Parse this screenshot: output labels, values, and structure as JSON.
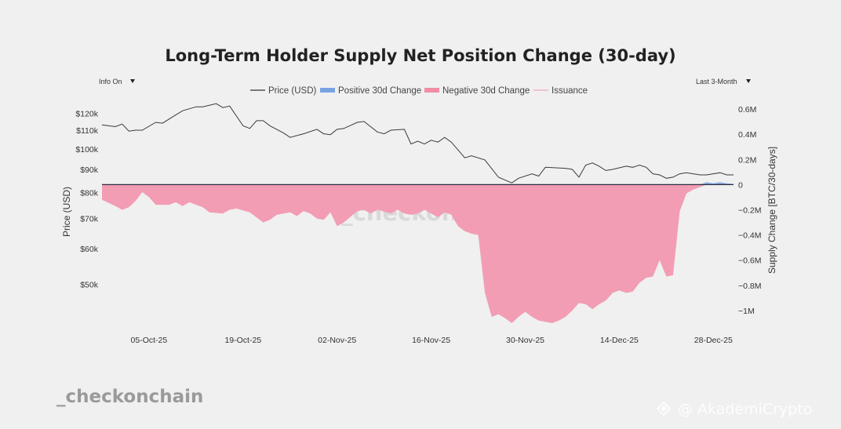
{
  "controls": {
    "info_label": "Info On",
    "range_label": "Last 3-Month"
  },
  "watermarks": {
    "center": "_checkonchain",
    "bottom_left": "_checkonchain",
    "bottom_right": "@ AkademiCrypto"
  },
  "chart_data": {
    "type": "line",
    "title": "Long-Term Holder Supply Net Position Change (30-day)",
    "legend": {
      "placement": "top-center",
      "entries": [
        {
          "label": "Price (USD)",
          "color": "#333333",
          "kind": "line"
        },
        {
          "label": "Positive 30d Change",
          "color": "#7aa2e3",
          "kind": "area"
        },
        {
          "label": "Negative 30d Change",
          "color": "#f28da8",
          "kind": "area"
        },
        {
          "label": "Issuance",
          "color": "#f2a6b8",
          "kind": "line"
        }
      ]
    },
    "x_axis": {
      "range": [
        "2025-09-28",
        "2025-12-31"
      ],
      "ticks": [
        {
          "date": "2025-10-05",
          "label": "05-Oct-25"
        },
        {
          "date": "2025-10-19",
          "label": "19-Oct-25"
        },
        {
          "date": "2025-11-02",
          "label": "02-Nov-25"
        },
        {
          "date": "2025-11-16",
          "label": "16-Nov-25"
        },
        {
          "date": "2025-11-30",
          "label": "30-Nov-25"
        },
        {
          "date": "2025-12-14",
          "label": "14-Dec-25"
        },
        {
          "date": "2025-12-28",
          "label": "28-Dec-25"
        }
      ]
    },
    "y_left": {
      "label": "Price (USD)",
      "scale": "log",
      "range": [
        43000,
        135000
      ],
      "ticks": [
        {
          "value": 50000,
          "label": "$50k"
        },
        {
          "value": 60000,
          "label": "$60k"
        },
        {
          "value": 70000,
          "label": "$70k"
        },
        {
          "value": 80000,
          "label": "$80k"
        },
        {
          "value": 90000,
          "label": "$90k"
        },
        {
          "value": 100000,
          "label": "$100k"
        },
        {
          "value": 110000,
          "label": "$110k"
        },
        {
          "value": 120000,
          "label": "$120k"
        }
      ]
    },
    "y_right": {
      "label": "Supply Change [BTC/30-days]",
      "scale": "linear",
      "range": [
        -1100000,
        700000
      ],
      "ticks": [
        {
          "value": 600000,
          "label": "0.6M"
        },
        {
          "value": 400000,
          "label": "0.4M"
        },
        {
          "value": 200000,
          "label": "0.2M"
        },
        {
          "value": 0,
          "label": "0"
        },
        {
          "value": -200000,
          "label": "−0.2M"
        },
        {
          "value": -400000,
          "label": "−0.4M"
        },
        {
          "value": -600000,
          "label": "−0.6M"
        },
        {
          "value": -800000,
          "label": "−0.8M"
        },
        {
          "value": -1000000,
          "label": "−1M"
        }
      ]
    },
    "grid": false,
    "price_series": [
      {
        "x": "2025-09-28",
        "y": 113000
      },
      {
        "x": "2025-09-30",
        "y": 112000
      },
      {
        "x": "2025-10-01",
        "y": 113500
      },
      {
        "x": "2025-10-02",
        "y": 109500
      },
      {
        "x": "2025-10-03",
        "y": 110000
      },
      {
        "x": "2025-10-04",
        "y": 110000
      },
      {
        "x": "2025-10-06",
        "y": 114500
      },
      {
        "x": "2025-10-07",
        "y": 114000
      },
      {
        "x": "2025-10-09",
        "y": 119000
      },
      {
        "x": "2025-10-10",
        "y": 121500
      },
      {
        "x": "2025-10-12",
        "y": 124000
      },
      {
        "x": "2025-10-13",
        "y": 124000
      },
      {
        "x": "2025-10-15",
        "y": 126000
      },
      {
        "x": "2025-10-16",
        "y": 123500
      },
      {
        "x": "2025-10-17",
        "y": 124500
      },
      {
        "x": "2025-10-19",
        "y": 112500
      },
      {
        "x": "2025-10-20",
        "y": 111000
      },
      {
        "x": "2025-10-21",
        "y": 115500
      },
      {
        "x": "2025-10-22",
        "y": 115500
      },
      {
        "x": "2025-10-23",
        "y": 112500
      },
      {
        "x": "2025-10-25",
        "y": 108500
      },
      {
        "x": "2025-10-26",
        "y": 106000
      },
      {
        "x": "2025-10-28",
        "y": 108000
      },
      {
        "x": "2025-10-30",
        "y": 110500
      },
      {
        "x": "2025-10-31",
        "y": 108000
      },
      {
        "x": "2025-11-01",
        "y": 107500
      },
      {
        "x": "2025-11-02",
        "y": 110500
      },
      {
        "x": "2025-11-03",
        "y": 111000
      },
      {
        "x": "2025-11-05",
        "y": 114500
      },
      {
        "x": "2025-11-06",
        "y": 115000
      },
      {
        "x": "2025-11-08",
        "y": 109000
      },
      {
        "x": "2025-11-09",
        "y": 108000
      },
      {
        "x": "2025-11-10",
        "y": 110000
      },
      {
        "x": "2025-11-12",
        "y": 110500
      },
      {
        "x": "2025-11-13",
        "y": 102500
      },
      {
        "x": "2025-11-14",
        "y": 104000
      },
      {
        "x": "2025-11-15",
        "y": 102500
      },
      {
        "x": "2025-11-16",
        "y": 104500
      },
      {
        "x": "2025-11-17",
        "y": 103500
      },
      {
        "x": "2025-11-18",
        "y": 106000
      },
      {
        "x": "2025-11-19",
        "y": 103500
      },
      {
        "x": "2025-11-21",
        "y": 95500
      },
      {
        "x": "2025-11-22",
        "y": 96500
      },
      {
        "x": "2025-11-24",
        "y": 94500
      },
      {
        "x": "2025-11-26",
        "y": 86500
      },
      {
        "x": "2025-11-28",
        "y": 84000
      },
      {
        "x": "2025-11-29",
        "y": 86000
      },
      {
        "x": "2025-12-01",
        "y": 88000
      },
      {
        "x": "2025-12-02",
        "y": 87000
      },
      {
        "x": "2025-12-03",
        "y": 91000
      },
      {
        "x": "2025-12-06",
        "y": 90500
      },
      {
        "x": "2025-12-07",
        "y": 90000
      },
      {
        "x": "2025-12-08",
        "y": 86500
      },
      {
        "x": "2025-12-09",
        "y": 92000
      },
      {
        "x": "2025-12-10",
        "y": 93000
      },
      {
        "x": "2025-12-11",
        "y": 91500
      },
      {
        "x": "2025-12-12",
        "y": 89500
      },
      {
        "x": "2025-12-13",
        "y": 90000
      },
      {
        "x": "2025-12-15",
        "y": 91500
      },
      {
        "x": "2025-12-16",
        "y": 91000
      },
      {
        "x": "2025-12-17",
        "y": 92000
      },
      {
        "x": "2025-12-18",
        "y": 91000
      },
      {
        "x": "2025-12-19",
        "y": 88000
      },
      {
        "x": "2025-12-20",
        "y": 87500
      },
      {
        "x": "2025-12-21",
        "y": 86000
      },
      {
        "x": "2025-12-22",
        "y": 86500
      },
      {
        "x": "2025-12-23",
        "y": 88000
      },
      {
        "x": "2025-12-24",
        "y": 88500
      },
      {
        "x": "2025-12-25",
        "y": 88000
      },
      {
        "x": "2025-12-26",
        "y": 87500
      },
      {
        "x": "2025-12-27",
        "y": 87500
      },
      {
        "x": "2025-12-29",
        "y": 88500
      },
      {
        "x": "2025-12-30",
        "y": 87500
      },
      {
        "x": "2025-12-31",
        "y": 87500
      }
    ],
    "supply_change_series": [
      {
        "x": "2025-09-28",
        "y": -120000
      },
      {
        "x": "2025-09-30",
        "y": -170000
      },
      {
        "x": "2025-10-01",
        "y": -200000
      },
      {
        "x": "2025-10-02",
        "y": -180000
      },
      {
        "x": "2025-10-03",
        "y": -130000
      },
      {
        "x": "2025-10-04",
        "y": -60000
      },
      {
        "x": "2025-10-05",
        "y": -100000
      },
      {
        "x": "2025-10-06",
        "y": -160000
      },
      {
        "x": "2025-10-08",
        "y": -160000
      },
      {
        "x": "2025-10-09",
        "y": -140000
      },
      {
        "x": "2025-10-10",
        "y": -170000
      },
      {
        "x": "2025-10-11",
        "y": -140000
      },
      {
        "x": "2025-10-13",
        "y": -180000
      },
      {
        "x": "2025-10-14",
        "y": -220000
      },
      {
        "x": "2025-10-16",
        "y": -230000
      },
      {
        "x": "2025-10-17",
        "y": -200000
      },
      {
        "x": "2025-10-18",
        "y": -190000
      },
      {
        "x": "2025-10-20",
        "y": -220000
      },
      {
        "x": "2025-10-22",
        "y": -300000
      },
      {
        "x": "2025-10-23",
        "y": -280000
      },
      {
        "x": "2025-10-24",
        "y": -240000
      },
      {
        "x": "2025-10-26",
        "y": -220000
      },
      {
        "x": "2025-10-27",
        "y": -250000
      },
      {
        "x": "2025-10-28",
        "y": -210000
      },
      {
        "x": "2025-10-29",
        "y": -230000
      },
      {
        "x": "2025-10-30",
        "y": -270000
      },
      {
        "x": "2025-10-31",
        "y": -280000
      },
      {
        "x": "2025-11-01",
        "y": -220000
      },
      {
        "x": "2025-11-02",
        "y": -330000
      },
      {
        "x": "2025-11-03",
        "y": -300000
      },
      {
        "x": "2025-11-05",
        "y": -210000
      },
      {
        "x": "2025-11-06",
        "y": -200000
      },
      {
        "x": "2025-11-07",
        "y": -230000
      },
      {
        "x": "2025-11-08",
        "y": -200000
      },
      {
        "x": "2025-11-10",
        "y": -230000
      },
      {
        "x": "2025-11-11",
        "y": -200000
      },
      {
        "x": "2025-11-12",
        "y": -230000
      },
      {
        "x": "2025-11-13",
        "y": -240000
      },
      {
        "x": "2025-11-14",
        "y": -230000
      },
      {
        "x": "2025-11-15",
        "y": -200000
      },
      {
        "x": "2025-11-17",
        "y": -260000
      },
      {
        "x": "2025-11-18",
        "y": -220000
      },
      {
        "x": "2025-11-19",
        "y": -240000
      },
      {
        "x": "2025-11-20",
        "y": -330000
      },
      {
        "x": "2025-11-21",
        "y": -370000
      },
      {
        "x": "2025-11-22",
        "y": -390000
      },
      {
        "x": "2025-11-23",
        "y": -400000
      },
      {
        "x": "2025-11-24",
        "y": -860000
      },
      {
        "x": "2025-11-25",
        "y": -1050000
      },
      {
        "x": "2025-11-26",
        "y": -1030000
      },
      {
        "x": "2025-11-27",
        "y": -1060000
      },
      {
        "x": "2025-11-28",
        "y": -1100000
      },
      {
        "x": "2025-11-29",
        "y": -1050000
      },
      {
        "x": "2025-11-30",
        "y": -1010000
      },
      {
        "x": "2025-12-01",
        "y": -1050000
      },
      {
        "x": "2025-12-02",
        "y": -1080000
      },
      {
        "x": "2025-12-04",
        "y": -1100000
      },
      {
        "x": "2025-12-05",
        "y": -1080000
      },
      {
        "x": "2025-12-06",
        "y": -1050000
      },
      {
        "x": "2025-12-07",
        "y": -1000000
      },
      {
        "x": "2025-12-08",
        "y": -940000
      },
      {
        "x": "2025-12-09",
        "y": -950000
      },
      {
        "x": "2025-12-10",
        "y": -990000
      },
      {
        "x": "2025-12-11",
        "y": -950000
      },
      {
        "x": "2025-12-12",
        "y": -920000
      },
      {
        "x": "2025-12-13",
        "y": -860000
      },
      {
        "x": "2025-12-14",
        "y": -840000
      },
      {
        "x": "2025-12-15",
        "y": -860000
      },
      {
        "x": "2025-12-16",
        "y": -850000
      },
      {
        "x": "2025-12-17",
        "y": -780000
      },
      {
        "x": "2025-12-18",
        "y": -740000
      },
      {
        "x": "2025-12-19",
        "y": -730000
      },
      {
        "x": "2025-12-20",
        "y": -600000
      },
      {
        "x": "2025-12-21",
        "y": -730000
      },
      {
        "x": "2025-12-22",
        "y": -720000
      },
      {
        "x": "2025-12-23",
        "y": -210000
      },
      {
        "x": "2025-12-24",
        "y": -70000
      },
      {
        "x": "2025-12-25",
        "y": -40000
      },
      {
        "x": "2025-12-26",
        "y": -20000
      },
      {
        "x": "2025-12-27",
        "y": 20000
      },
      {
        "x": "2025-12-28",
        "y": 10000
      },
      {
        "x": "2025-12-29",
        "y": 20000
      },
      {
        "x": "2025-12-30",
        "y": 10000
      },
      {
        "x": "2025-12-31",
        "y": 5000
      }
    ]
  }
}
